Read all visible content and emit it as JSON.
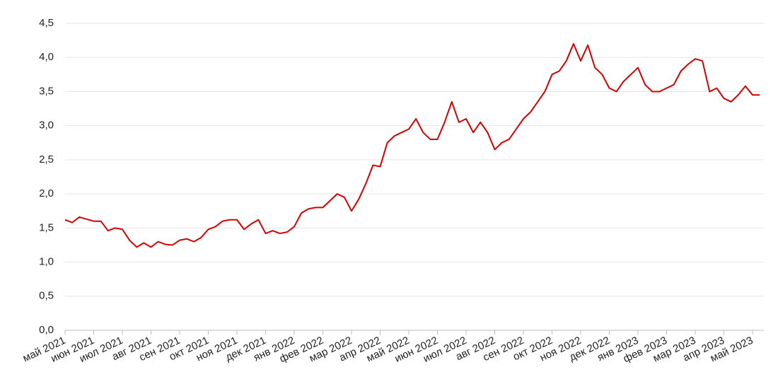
{
  "chart_data": {
    "type": "line",
    "categories": [
      "май 2021",
      null,
      null,
      null,
      "июн 2021",
      null,
      null,
      null,
      "июл 2021",
      null,
      null,
      null,
      "авг 2021",
      null,
      null,
      null,
      "сен 2021",
      null,
      null,
      null,
      "окт 2021",
      null,
      null,
      null,
      "ноя 2021",
      null,
      null,
      null,
      "дек 2021",
      null,
      null,
      null,
      "янв 2022",
      null,
      null,
      null,
      "фев 2022",
      null,
      null,
      null,
      "мар 2022",
      null,
      null,
      null,
      "апр 2022",
      null,
      null,
      null,
      "май 2022",
      null,
      null,
      null,
      "июн 2022",
      null,
      null,
      null,
      "июл 2022",
      null,
      null,
      null,
      "авг 2022",
      null,
      null,
      null,
      "сен 2022",
      null,
      null,
      null,
      "окт 2022",
      null,
      null,
      null,
      "ноя 2022",
      null,
      null,
      null,
      "дек 2022",
      null,
      null,
      null,
      "янв 2023",
      null,
      null,
      null,
      "фев 2023",
      null,
      null,
      null,
      "мар 2023",
      null,
      null,
      null,
      "апр 2023",
      null,
      null,
      null,
      "май 2023",
      null
    ],
    "series": [
      {
        "color": "#d40000",
        "values": [
          1.62,
          1.58,
          1.66,
          1.63,
          1.6,
          1.6,
          1.46,
          1.5,
          1.48,
          1.32,
          1.22,
          1.28,
          1.22,
          1.3,
          1.26,
          1.25,
          1.32,
          1.34,
          1.3,
          1.36,
          1.48,
          1.52,
          1.6,
          1.62,
          1.62,
          1.48,
          1.56,
          1.62,
          1.42,
          1.46,
          1.42,
          1.44,
          1.52,
          1.72,
          1.78,
          1.8,
          1.8,
          1.9,
          2.0,
          1.95,
          1.75,
          1.92,
          2.15,
          2.42,
          2.4,
          2.75,
          2.85,
          2.9,
          2.95,
          3.1,
          2.9,
          2.8,
          2.8,
          3.05,
          3.35,
          3.05,
          3.1,
          2.9,
          3.05,
          2.9,
          2.65,
          2.75,
          2.8,
          2.95,
          3.1,
          3.2,
          3.35,
          3.5,
          3.75,
          3.8,
          3.95,
          4.2,
          3.95,
          4.18,
          3.85,
          3.75,
          3.55,
          3.5,
          3.65,
          3.75,
          3.85,
          3.6,
          3.5,
          3.5,
          3.55,
          3.6,
          3.8,
          3.9,
          3.98,
          3.95,
          3.5,
          3.55,
          3.4,
          3.35,
          3.45,
          3.58,
          3.45,
          3.45
        ]
      }
    ],
    "ylim": [
      0,
      4.5
    ],
    "yticks": [
      {
        "value": 0,
        "label": "0,0"
      },
      {
        "value": 0.5,
        "label": "0,5"
      },
      {
        "value": 1,
        "label": "1,0"
      },
      {
        "value": 1.5,
        "label": "1,5"
      },
      {
        "value": 2,
        "label": "2,0"
      },
      {
        "value": 2.5,
        "label": "2,5"
      },
      {
        "value": 3,
        "label": "3,0"
      },
      {
        "value": 3.5,
        "label": "3,5"
      },
      {
        "value": 4,
        "label": "4,0"
      },
      {
        "value": 4.5,
        "label": "4,5"
      }
    ],
    "grid": true
  }
}
